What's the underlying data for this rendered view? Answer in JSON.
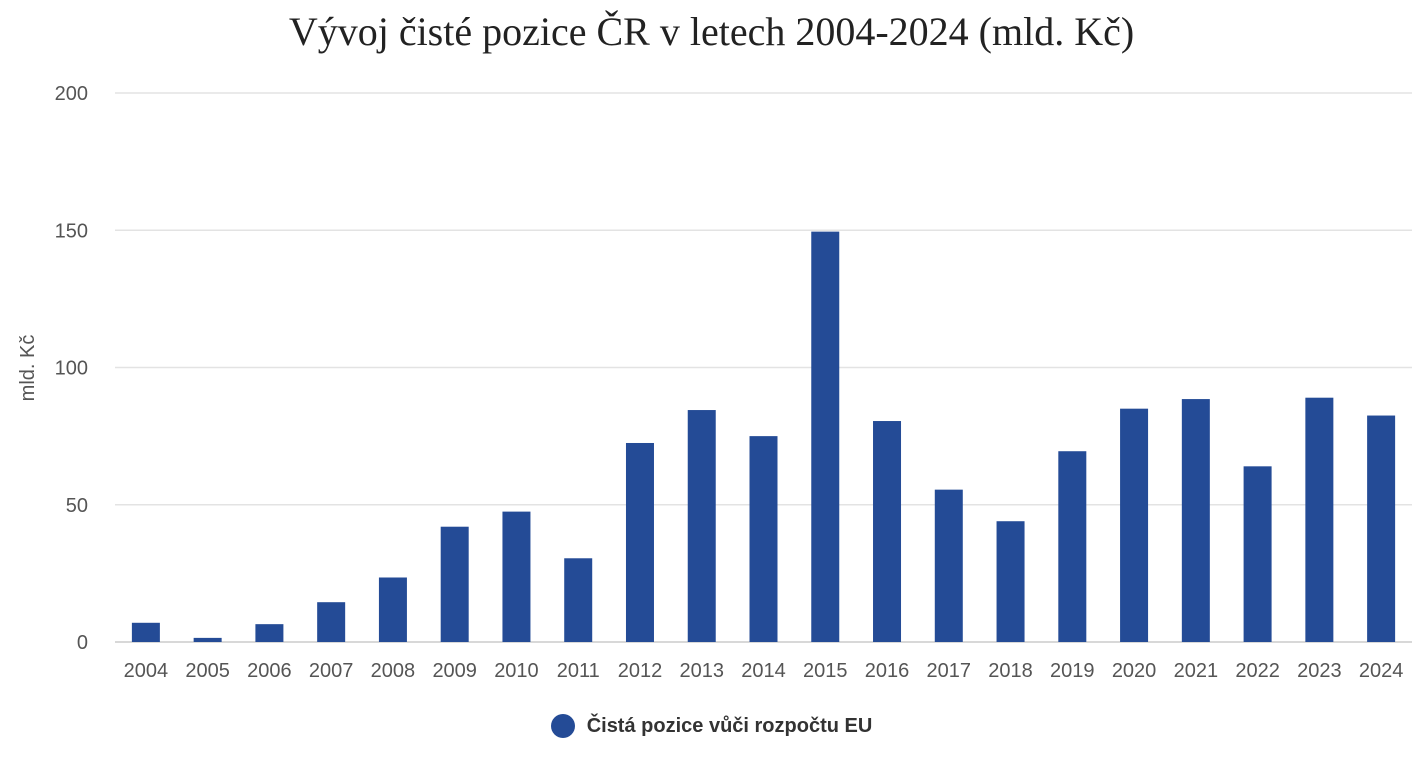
{
  "chart_data": {
    "type": "bar",
    "title": "Vývoj čisté pozice ČR v letech 2004-2024 (mld. Kč)",
    "xlabel": "",
    "ylabel": "mld. Kč",
    "ylim": [
      0,
      200
    ],
    "yticks": [
      "0",
      "50",
      "100",
      "150",
      "200"
    ],
    "grid": true,
    "legend_position": "bottom-center",
    "categories": [
      "2004",
      "2005",
      "2006",
      "2007",
      "2008",
      "2009",
      "2010",
      "2011",
      "2012",
      "2013",
      "2014",
      "2015",
      "2016",
      "2017",
      "2018",
      "2019",
      "2020",
      "2021",
      "2022",
      "2023",
      "2024"
    ],
    "series": [
      {
        "name": "Čistá pozice vůči rozpočtu EU",
        "color": "#244b96",
        "values": [
          7,
          1.5,
          6.5,
          14.5,
          23.5,
          42,
          47.5,
          30.5,
          72.5,
          84.5,
          75,
          149.5,
          80.5,
          55.5,
          44,
          69.5,
          85,
          88.5,
          64,
          89,
          82.5
        ]
      }
    ]
  }
}
